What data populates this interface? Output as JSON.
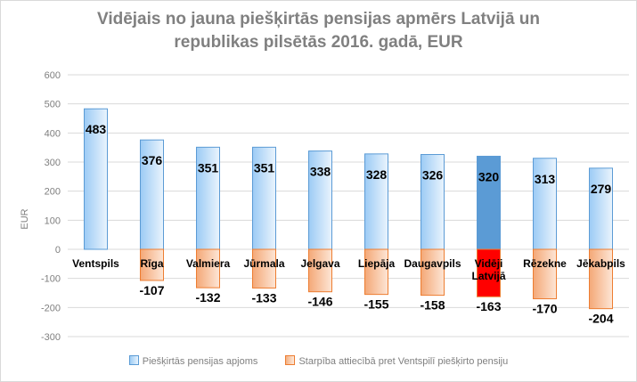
{
  "chart_data": {
    "type": "bar",
    "title_lines": [
      "Vidējais no jauna piešķirtās pensijas apmērs Latvijā un",
      "republikas pilsētās 2016. gadā, EUR"
    ],
    "ylabel": "EUR",
    "ylim": [
      -300,
      600
    ],
    "yticks": [
      -300,
      -200,
      -100,
      0,
      100,
      200,
      300,
      400,
      500,
      600
    ],
    "grid": true,
    "legend_position": "bottom",
    "categories": [
      "Ventspils",
      "Rīga",
      "Valmiera",
      "Jūrmala",
      "Jelgava",
      "Liepāja",
      "Daugavpils",
      "Vidēji Latvijā",
      "Rēzekne",
      "Jēkabpils"
    ],
    "category_lines": [
      [
        "Ventspils"
      ],
      [
        "Rīga"
      ],
      [
        "Valmiera"
      ],
      [
        "Jūrmala"
      ],
      [
        "Jelgava"
      ],
      [
        "Liepāja"
      ],
      [
        "Daugavpils"
      ],
      [
        "Vidēji",
        "Latvijā"
      ],
      [
        "Rēzekne"
      ],
      [
        "Jēkabpils"
      ]
    ],
    "highlight_index": 7,
    "series": [
      {
        "name": "Piešķirtās pensijas apjoms",
        "values": [
          483,
          376,
          351,
          351,
          338,
          328,
          326,
          320,
          313,
          279
        ],
        "color": "#5b9bd5",
        "highlight_color": "#5b9bd5"
      },
      {
        "name": "Starpība attiecībā pret Ventspilī piešķirto pensiju",
        "values": [
          null,
          -107,
          -132,
          -133,
          -146,
          -155,
          -158,
          -163,
          -170,
          -204
        ],
        "color": "#ed7d31",
        "highlight_color": "#ff0000"
      }
    ]
  }
}
